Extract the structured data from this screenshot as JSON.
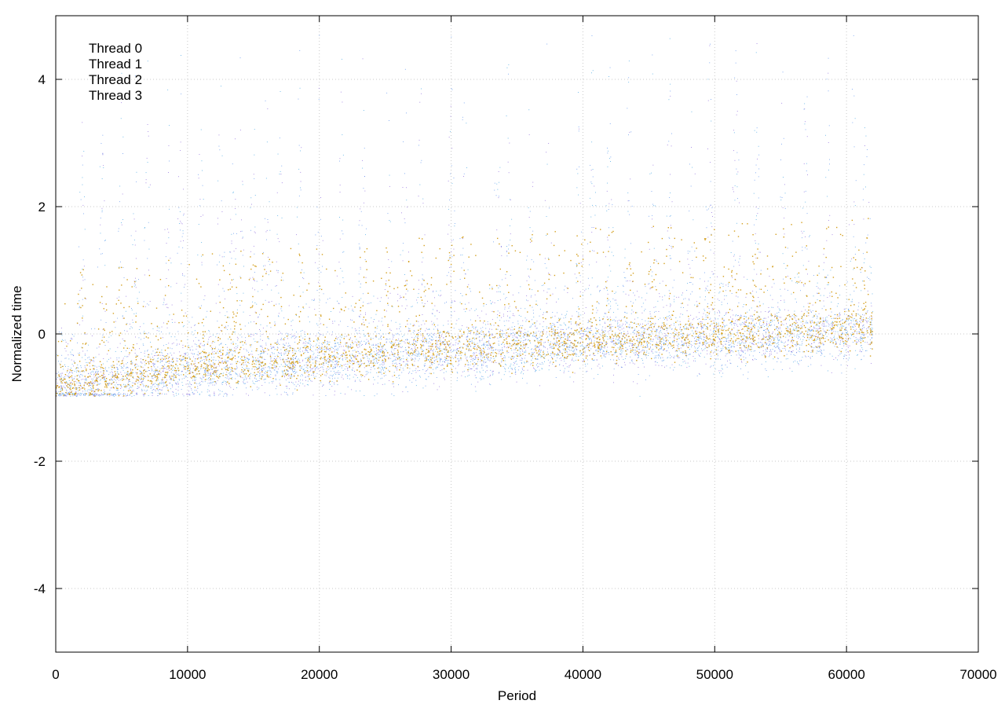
{
  "chart_data": {
    "type": "scatter",
    "title": "",
    "xlabel": "Period",
    "ylabel": "Normalized time",
    "xlim": [
      0,
      70000
    ],
    "ylim": [
      -5,
      5
    ],
    "xticks": [
      0,
      10000,
      20000,
      30000,
      40000,
      50000,
      60000,
      70000
    ],
    "yticks": [
      -4,
      -2,
      0,
      2,
      4
    ],
    "xtick_labels": [
      "0",
      "10000",
      "20000",
      "30000",
      "40000",
      "50000",
      "60000",
      "70000"
    ],
    "ytick_labels": [
      "-4",
      "-2",
      "0",
      "2",
      "4"
    ],
    "grid": true,
    "legend_position": "top-left",
    "point_count_per_series": 62000,
    "series": [
      {
        "name": "Thread 0",
        "color": "#5ab0e6",
        "trend": [
          [
            0,
            -0.9
          ],
          [
            10000,
            -0.6
          ],
          [
            20000,
            -0.45
          ],
          [
            30000,
            -0.3
          ],
          [
            40000,
            -0.2
          ],
          [
            50000,
            -0.1
          ],
          [
            62000,
            0.0
          ]
        ],
        "typical_spread": 0.35,
        "max_spike": 5.0
      },
      {
        "name": "Thread 1",
        "color": "#9a7ae0",
        "trend": [
          [
            0,
            -0.9
          ],
          [
            10000,
            -0.6
          ],
          [
            20000,
            -0.45
          ],
          [
            30000,
            -0.3
          ],
          [
            40000,
            -0.2
          ],
          [
            50000,
            -0.1
          ],
          [
            62000,
            0.0
          ]
        ],
        "typical_spread": 0.35,
        "max_spike": 4.6
      },
      {
        "name": "Thread 2",
        "color": "#6e9ff0",
        "trend": [
          [
            0,
            -0.9
          ],
          [
            10000,
            -0.6
          ],
          [
            20000,
            -0.45
          ],
          [
            30000,
            -0.3
          ],
          [
            40000,
            -0.2
          ],
          [
            50000,
            -0.1
          ],
          [
            62000,
            0.0
          ]
        ],
        "typical_spread": 0.35,
        "max_spike": 5.0
      },
      {
        "name": "Thread 3",
        "color": "#d4a020",
        "trend": [
          [
            0,
            -0.85
          ],
          [
            10000,
            -0.55
          ],
          [
            20000,
            -0.4
          ],
          [
            30000,
            -0.25
          ],
          [
            40000,
            -0.15
          ],
          [
            50000,
            -0.05
          ],
          [
            62000,
            0.05
          ]
        ],
        "typical_spread": 0.25,
        "max_spike": 3.6
      }
    ],
    "spike_periods": [
      2000,
      3500,
      5000,
      6000,
      7000,
      8500,
      9500,
      11000,
      12500,
      13500,
      14000,
      15000,
      16000,
      17000,
      18500,
      20000,
      21700,
      23300,
      25200,
      26500,
      27700,
      30000,
      31000,
      33500,
      34300,
      36000,
      37300,
      39700,
      40700,
      42000,
      43500,
      45300,
      46600,
      48300,
      49600,
      51600,
      53200,
      55200,
      56900,
      58600,
      60500,
      61500
    ]
  }
}
